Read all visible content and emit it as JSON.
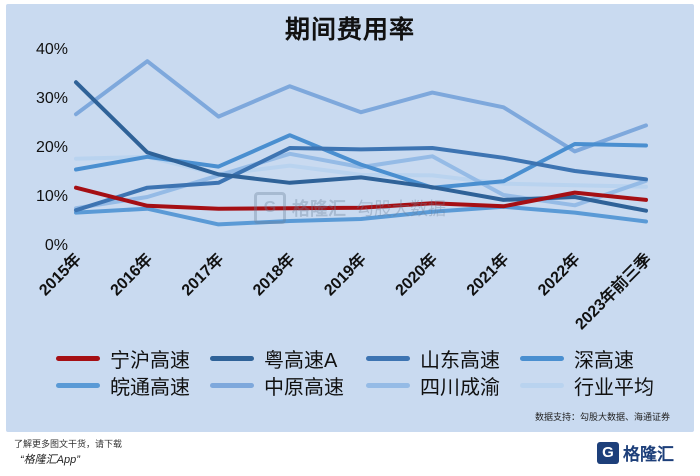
{
  "title": "期间费用率",
  "chart_data": {
    "type": "line",
    "title": "期间费用率",
    "xlabel": "",
    "ylabel": "",
    "ylim": [
      0,
      40
    ],
    "y_ticks": [
      "0%",
      "10%",
      "20%",
      "30%",
      "40%"
    ],
    "y_tick_values": [
      0,
      10,
      20,
      30,
      40
    ],
    "grid": false,
    "legend_position": "bottom",
    "categories": [
      "2015年",
      "2016年",
      "2017年",
      "2018年",
      "2019年",
      "2020年",
      "2021年",
      "2022年",
      "2023年前三季"
    ],
    "series": [
      {
        "name": "宁沪高速",
        "color": "#a50f14",
        "values": [
          11.5,
          7.8,
          7.2,
          7.3,
          7.4,
          8.3,
          7.7,
          10.5,
          9.0
        ]
      },
      {
        "name": "粤高速A",
        "color": "#2f6298",
        "values": [
          33.0,
          18.7,
          14.2,
          12.5,
          13.6,
          11.6,
          9.0,
          9.6,
          6.8
        ]
      },
      {
        "name": "山东高速",
        "color": "#3d74b2",
        "values": [
          6.9,
          11.5,
          12.5,
          19.6,
          19.3,
          19.6,
          17.6,
          14.9,
          13.2
        ]
      },
      {
        "name": "深高速",
        "color": "#4a8fd0",
        "values": [
          15.2,
          17.8,
          15.8,
          22.2,
          16.2,
          11.5,
          12.8,
          20.4,
          20.1
        ]
      },
      {
        "name": "皖通高速",
        "color": "#5a9ad6",
        "values": [
          6.4,
          7.2,
          4.0,
          4.7,
          5.1,
          6.6,
          7.6,
          6.4,
          4.6
        ]
      },
      {
        "name": "中原高速",
        "color": "#7ea8dc",
        "values": [
          26.5,
          37.3,
          26.0,
          32.2,
          26.9,
          30.9,
          27.9,
          18.9,
          24.2
        ]
      },
      {
        "name": "四川成渝",
        "color": "#95bbe6",
        "values": [
          7.3,
          9.6,
          14.0,
          18.4,
          15.7,
          17.9,
          10.0,
          7.9,
          12.9
        ]
      },
      {
        "name": "行业平均",
        "color": "#b9d3ef",
        "values": [
          17.4,
          17.8,
          14.2,
          16.0,
          14.1,
          14.0,
          12.3,
          12.0,
          11.7
        ]
      }
    ]
  },
  "watermark": {
    "logo": "G",
    "name": "格隆汇",
    "site": "勾股大数据"
  },
  "source": "数据支持：勾股大数据、海通证券",
  "footer": {
    "note": "了解更多图文干货，请下载",
    "app": "“格隆汇App”",
    "logo_letter": "G",
    "logo_name": "格隆汇"
  }
}
